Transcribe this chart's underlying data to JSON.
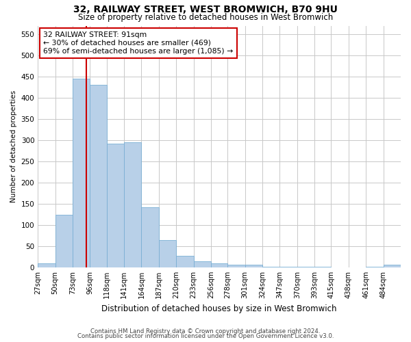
{
  "title": "32, RAILWAY STREET, WEST BROMWICH, B70 9HU",
  "subtitle": "Size of property relative to detached houses in West Bromwich",
  "xlabel": "Distribution of detached houses by size in West Bromwich",
  "ylabel": "Number of detached properties",
  "footer_line1": "Contains HM Land Registry data © Crown copyright and database right 2024.",
  "footer_line2": "Contains public sector information licensed under the Open Government Licence v3.0.",
  "bar_labels": [
    "27sqm",
    "50sqm",
    "73sqm",
    "96sqm",
    "118sqm",
    "141sqm",
    "164sqm",
    "187sqm",
    "210sqm",
    "233sqm",
    "256sqm",
    "278sqm",
    "301sqm",
    "324sqm",
    "347sqm",
    "370sqm",
    "393sqm",
    "415sqm",
    "438sqm",
    "461sqm",
    "484sqm"
  ],
  "bar_values": [
    10,
    124,
    445,
    430,
    292,
    295,
    142,
    65,
    27,
    14,
    9,
    7,
    6,
    2,
    2,
    2,
    2,
    0,
    0,
    1,
    6
  ],
  "bar_color": "#b8d0e8",
  "bar_edge_color": "#7aafd4",
  "ylim": [
    0,
    570
  ],
  "yticks": [
    0,
    50,
    100,
    150,
    200,
    250,
    300,
    350,
    400,
    450,
    500,
    550
  ],
  "property_size": 91,
  "annotation_line1": "32 RAILWAY STREET: 91sqm",
  "annotation_line2": "← 30% of detached houses are smaller (469)",
  "annotation_line3": "69% of semi-detached houses are larger (1,085) →",
  "vline_color": "#cc0000",
  "annotation_box_edge": "#cc0000",
  "background_color": "#ffffff",
  "grid_color": "#c8c8c8",
  "title_fontsize": 10,
  "subtitle_fontsize": 8.5
}
